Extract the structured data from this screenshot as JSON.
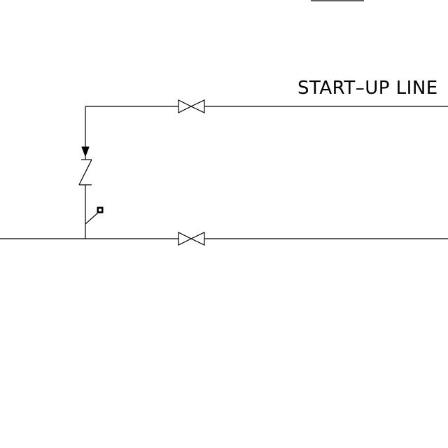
{
  "diagram": {
    "line_label": "START–UP LINE",
    "colors": {
      "background": "#ffffff",
      "stroke": "#000000"
    },
    "symbols": [
      "gate-valve",
      "gate-valve",
      "check-valve",
      "flow-arrow",
      "small-instrument-tag"
    ]
  }
}
